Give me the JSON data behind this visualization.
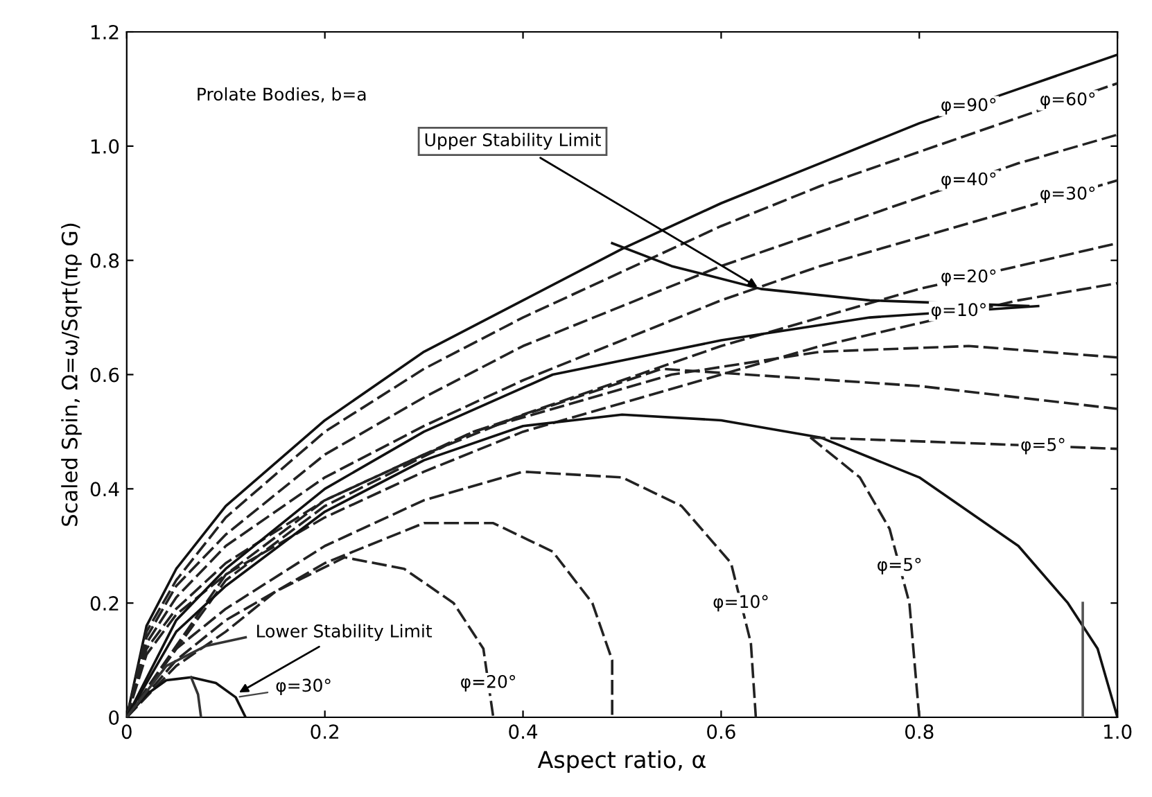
{
  "chart_data": {
    "type": "line",
    "xlabel": "Aspect ratio, α",
    "ylabel": "Scaled Spin, Ω=ω/Sqrt(πρ G)",
    "xlim": [
      0,
      1.0
    ],
    "ylim": [
      0,
      1.2
    ],
    "xticks": [
      0,
      0.2,
      0.4,
      0.6,
      0.8,
      {
        "value": 1.0,
        "label": "1.0"
      }
    ],
    "yticks": [
      0,
      0.2,
      0.4,
      0.6,
      0.8,
      {
        "value": 1.0,
        "label": "1.0"
      },
      {
        "value": 1.2,
        "label": "1.2"
      }
    ],
    "grid": false,
    "marker": "none",
    "series": [
      {
        "color": "#111111",
        "line_style": "solid",
        "x": [
          0,
          0.02,
          0.05,
          0.1,
          0.2,
          0.3,
          0.4,
          0.5,
          0.6,
          0.7,
          0.8,
          0.9,
          1.0
        ],
        "values": [
          0,
          0.16,
          0.26,
          0.37,
          0.52,
          0.64,
          0.73,
          0.82,
          0.9,
          0.97,
          1.04,
          1.1,
          1.16
        ]
      },
      {
        "color": "#222222",
        "line_style": "dashed",
        "x": [
          0,
          0.02,
          0.05,
          0.1,
          0.2,
          0.3,
          0.4,
          0.5,
          0.6,
          0.7,
          0.8,
          0.9,
          1.0
        ],
        "values": [
          0,
          0.15,
          0.24,
          0.35,
          0.5,
          0.61,
          0.7,
          0.78,
          0.86,
          0.93,
          0.99,
          1.05,
          1.11
        ]
      },
      {
        "color": "#222222",
        "line_style": "dashed",
        "x": [
          0,
          0.02,
          0.05,
          0.1,
          0.2,
          0.3,
          0.4,
          0.5,
          0.6,
          0.7,
          0.8,
          0.9,
          1.0
        ],
        "values": [
          0,
          0.14,
          0.23,
          0.32,
          0.46,
          0.56,
          0.65,
          0.72,
          0.79,
          0.85,
          0.91,
          0.97,
          1.02
        ]
      },
      {
        "color": "#222222",
        "line_style": "dashed",
        "x": [
          0,
          0.02,
          0.05,
          0.1,
          0.2,
          0.3,
          0.4,
          0.5,
          0.6,
          0.7,
          0.8,
          0.9,
          1.0
        ],
        "values": [
          0,
          0.13,
          0.21,
          0.3,
          0.42,
          0.51,
          0.59,
          0.66,
          0.73,
          0.79,
          0.84,
          0.89,
          0.94
        ]
      },
      {
        "color": "#222222",
        "line_style": "dashed",
        "x": [
          0,
          0.02,
          0.05,
          0.1,
          0.2,
          0.3,
          0.4,
          0.5,
          0.6,
          0.7,
          0.8,
          0.9,
          1.0
        ],
        "values": [
          0,
          0.12,
          0.19,
          0.27,
          0.38,
          0.46,
          0.53,
          0.59,
          0.65,
          0.7,
          0.75,
          0.79,
          0.83
        ]
      },
      {
        "color": "#222222",
        "line_style": "dashed",
        "x": [
          0,
          0.02,
          0.05,
          0.1,
          0.2,
          0.3,
          0.4,
          0.5,
          0.6,
          0.7,
          0.8,
          0.9,
          1.0
        ],
        "values": [
          0,
          0.11,
          0.18,
          0.25,
          0.35,
          0.43,
          0.5,
          0.55,
          0.6,
          0.65,
          0.69,
          0.73,
          0.76
        ]
      },
      {
        "color": "#111111",
        "line_style": "solid",
        "x": [
          0,
          0.05,
          0.1,
          0.2,
          0.3,
          0.43,
          0.6,
          0.75,
          0.92
        ],
        "values": [
          0,
          0.17,
          0.26,
          0.4,
          0.5,
          0.6,
          0.66,
          0.7,
          0.72
        ]
      },
      {
        "color": "#222222",
        "line_style": "dashed",
        "x": [
          0,
          0.1,
          0.2,
          0.35,
          0.55,
          0.7,
          0.85,
          1.0
        ],
        "values": [
          0,
          0.25,
          0.38,
          0.5,
          0.6,
          0.64,
          0.65,
          0.63
        ]
      },
      {
        "color": "#222222",
        "line_style": "dashed",
        "x": [
          0,
          0.1,
          0.2,
          0.35,
          0.54,
          0.8,
          1.0
        ],
        "values": [
          0,
          0.24,
          0.37,
          0.5,
          0.61,
          0.58,
          0.54
        ]
      },
      {
        "color": "#111111",
        "line_style": "solid",
        "x": [
          0,
          0.05,
          0.1,
          0.2,
          0.3,
          0.4,
          0.5,
          0.6,
          0.7,
          0.8,
          0.9,
          0.95,
          0.98,
          1.0
        ],
        "values": [
          0,
          0.15,
          0.23,
          0.36,
          0.45,
          0.51,
          0.53,
          0.52,
          0.49,
          0.42,
          0.3,
          0.2,
          0.12,
          0
        ]
      },
      {
        "color": "#222222",
        "line_style": "dashed",
        "x": [
          0.69,
          0.85,
          1.0
        ],
        "values": [
          0.49,
          0.48,
          0.47
        ]
      },
      {
        "color": "#222222",
        "line_style": "dashed",
        "x": [
          0.69,
          0.74,
          0.77,
          0.79,
          0.8
        ],
        "values": [
          0.49,
          0.42,
          0.33,
          0.2,
          0
        ]
      },
      {
        "color": "#222222",
        "line_style": "dashed",
        "x": [
          0,
          0.05,
          0.1,
          0.2,
          0.3,
          0.4,
          0.5,
          0.56,
          0.61,
          0.63,
          0.635
        ],
        "values": [
          0,
          0.12,
          0.19,
          0.3,
          0.38,
          0.43,
          0.42,
          0.37,
          0.27,
          0.13,
          0
        ]
      },
      {
        "color": "#222222",
        "line_style": "dashed",
        "x": [
          0,
          0.05,
          0.1,
          0.2,
          0.3,
          0.37,
          0.43,
          0.47,
          0.49,
          0.49
        ],
        "values": [
          0,
          0.1,
          0.17,
          0.27,
          0.34,
          0.34,
          0.29,
          0.2,
          0.1,
          0
        ]
      },
      {
        "color": "#222222",
        "line_style": "dashed",
        "x": [
          0,
          0.05,
          0.1,
          0.15,
          0.22,
          0.28,
          0.33,
          0.36,
          0.37
        ],
        "values": [
          0,
          0.09,
          0.15,
          0.22,
          0.28,
          0.26,
          0.2,
          0.12,
          0
        ]
      },
      {
        "color": "#111111",
        "line_style": "solid",
        "x": [
          0,
          0.02,
          0.04,
          0.065,
          0.09,
          0.11,
          0.12
        ],
        "values": [
          0,
          0.04,
          0.065,
          0.07,
          0.06,
          0.035,
          0
        ]
      },
      {
        "color": "#333333",
        "line_style": "solid",
        "x": [
          0.065,
          0.072,
          0.075
        ],
        "values": [
          0.07,
          0.04,
          0
        ]
      },
      {
        "color": "#333333",
        "line_style": "solid",
        "x": [
          0,
          0.04,
          0.08,
          0.12
        ],
        "values": [
          0,
          0.09,
          0.125,
          0.14
        ]
      },
      {
        "color": "#111111",
        "line_style": "solid",
        "x": [
          0.49,
          0.55,
          0.64,
          0.75,
          0.91
        ],
        "values": [
          0.83,
          0.79,
          0.75,
          0.73,
          0.72
        ]
      },
      {
        "color": "#555555",
        "line_style": "solid",
        "x": [
          0.965,
          0.965
        ],
        "values": [
          0,
          0.2
        ]
      }
    ],
    "annotations": [
      "Prolate Bodies, b=a",
      {
        "text": "φ=90°",
        "x": 0.85,
        "y": 1.07
      },
      {
        "text": "φ=60°",
        "x": 0.95,
        "y": 1.08
      },
      {
        "text": "φ=40°",
        "x": 0.85,
        "y": 0.94
      },
      {
        "text": "φ=30°",
        "x": 0.95,
        "y": 0.915
      },
      {
        "text": "φ=20°",
        "x": 0.85,
        "y": 0.77
      },
      {
        "text": "φ=10°",
        "x": 0.84,
        "y": 0.711
      },
      {
        "text": "φ=5°",
        "x": 0.925,
        "y": 0.475
      },
      {
        "text": "φ=10°",
        "x": 0.62,
        "y": 0.2
      },
      {
        "text": "φ=5°",
        "x": 0.78,
        "y": 0.265
      },
      {
        "text": "φ=20°",
        "x": 0.365,
        "y": 0.06
      },
      {
        "text": "φ=30°",
        "x": 0.11,
        "y": 0.035
      },
      {
        "text": "Upper Stability Limit",
        "x": 0.64,
        "y": 0.75
      },
      {
        "text": "Lower Stability Limit",
        "x": 0.11,
        "y": 0.04
      }
    ]
  }
}
